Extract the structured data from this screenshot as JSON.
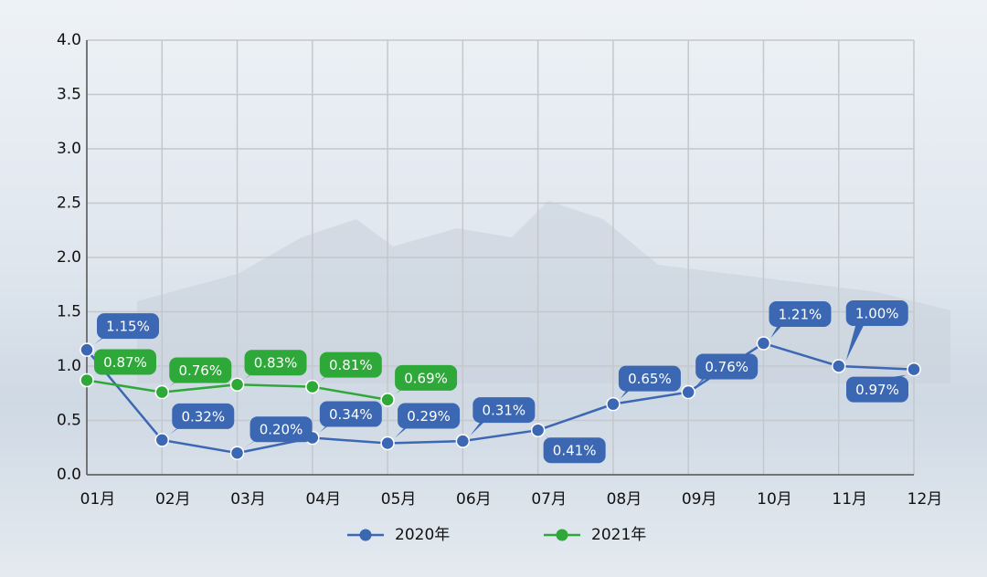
{
  "chart_data": {
    "type": "line",
    "categories": [
      "01月",
      "02月",
      "03月",
      "04月",
      "05月",
      "06月",
      "07月",
      "08月",
      "09月",
      "10月",
      "11月",
      "12月"
    ],
    "series": [
      {
        "name": "2020年",
        "color": "#3b67b3",
        "values": [
          1.15,
          0.32,
          0.2,
          0.34,
          0.29,
          0.31,
          0.41,
          0.65,
          0.76,
          1.21,
          1.0,
          0.97
        ],
        "value_labels": [
          "1.15%",
          "0.32%",
          "0.20%",
          "0.34%",
          "0.29%",
          "0.31%",
          "0.41%",
          "0.65%",
          "0.76%",
          "1.21%",
          "1.00%",
          "0.97%"
        ]
      },
      {
        "name": "2021年",
        "color": "#2fa83a",
        "values": [
          0.87,
          0.76,
          0.83,
          0.81,
          0.69,
          null,
          null,
          null,
          null,
          null,
          null,
          null
        ],
        "value_labels": [
          "0.87%",
          "0.76%",
          "0.83%",
          "0.81%",
          "0.69%",
          null,
          null,
          null,
          null,
          null,
          null,
          null
        ]
      }
    ],
    "ylim": [
      0,
      4
    ],
    "yticks": [
      {
        "value": 0,
        "label": "0.0"
      },
      {
        "value": 0.5,
        "label": "0.5"
      },
      {
        "value": 1,
        "label": "1.0"
      },
      {
        "value": 1.5,
        "label": "1.5"
      },
      {
        "value": 2,
        "label": "2.0"
      },
      {
        "value": 2.5,
        "label": "2.5"
      },
      {
        "value": 3,
        "label": "3.0"
      },
      {
        "value": 3.5,
        "label": "3.5"
      },
      {
        "value": 4,
        "label": "4.0"
      }
    ],
    "grid": true,
    "legend": "bottom"
  }
}
